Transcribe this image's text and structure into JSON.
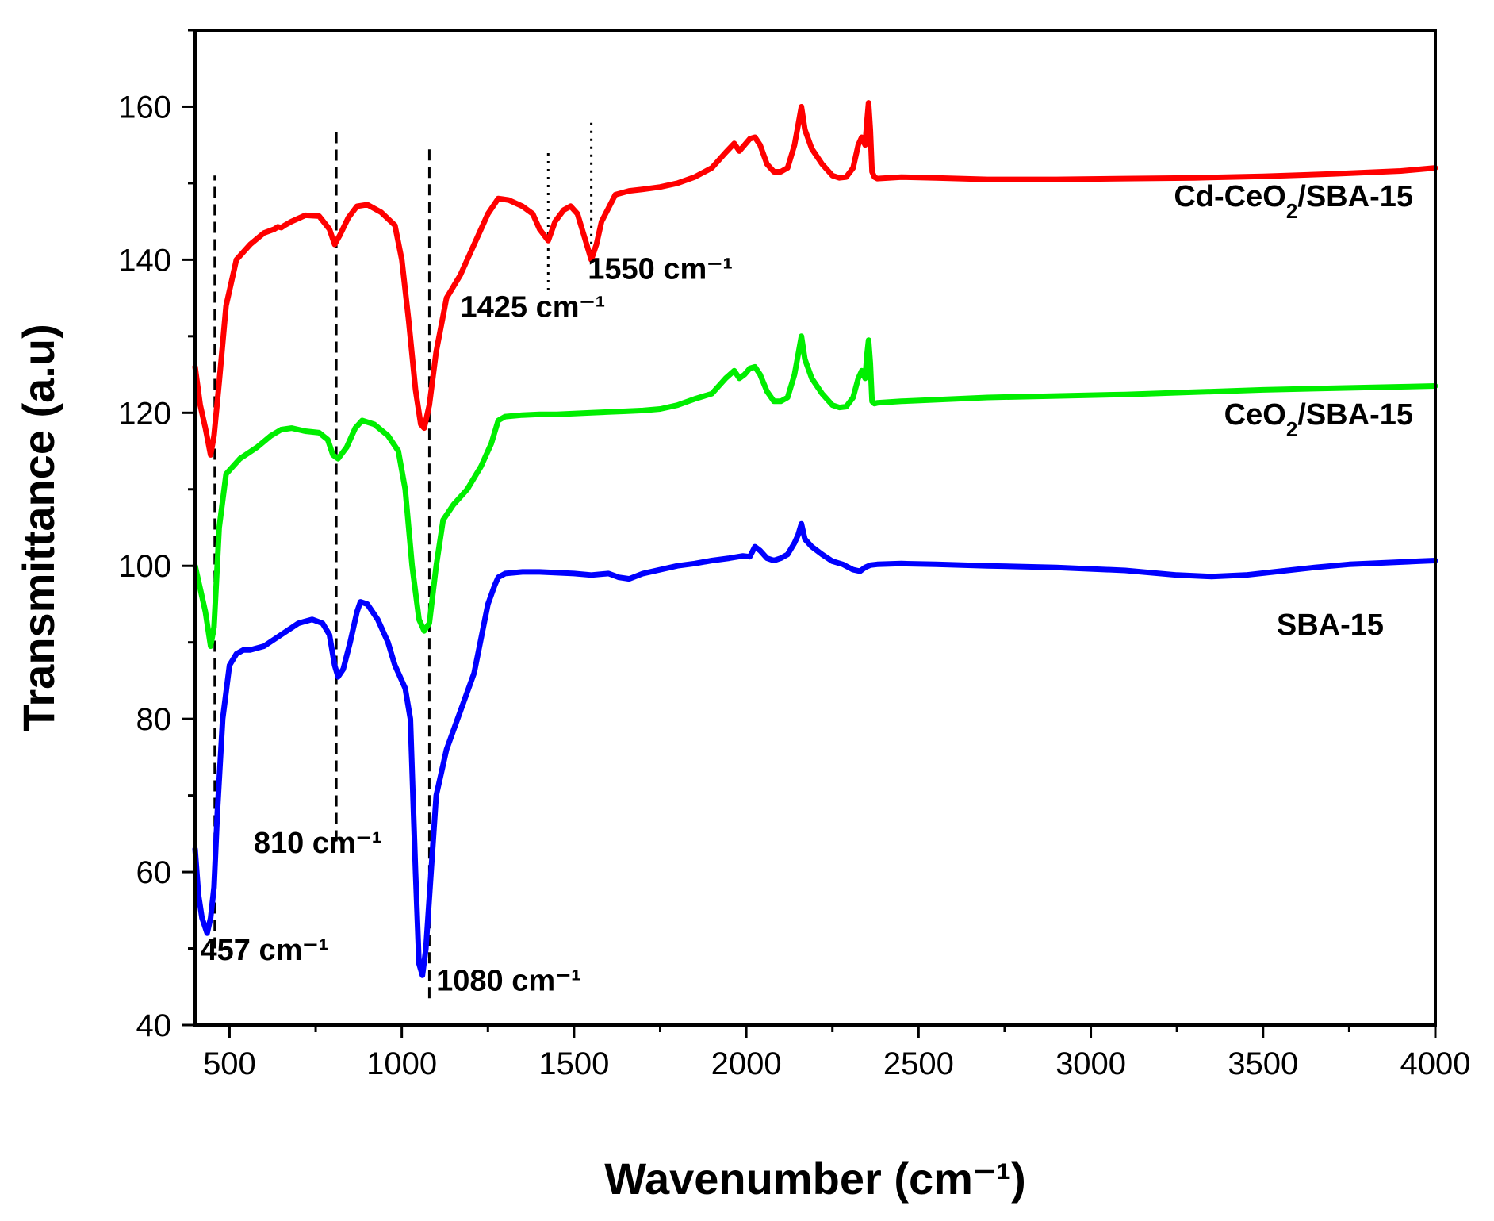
{
  "chart_data": {
    "type": "line",
    "title": "",
    "xlabel": "Wavenumber (cm⁻¹)",
    "ylabel": "Transmittance (a.u)",
    "xlim": [
      400,
      4000
    ],
    "ylim": [
      40,
      170
    ],
    "x_ticks": [
      500,
      1000,
      1500,
      2000,
      2500,
      3000,
      3500,
      4000
    ],
    "y_ticks": [
      40,
      60,
      80,
      100,
      120,
      140,
      160
    ],
    "grid": false,
    "legend": "inline labels at right",
    "series": [
      {
        "name": "Cd-CeO2/SBA-15",
        "label_parts": [
          "Cd-CeO",
          "2",
          "/SBA-15"
        ],
        "color": "#ff0000",
        "x": [
          400,
          415,
          430,
          445,
          455,
          470,
          490,
          520,
          560,
          600,
          630,
          640,
          650,
          660,
          680,
          720,
          760,
          790,
          805,
          820,
          845,
          870,
          900,
          940,
          980,
          1000,
          1020,
          1040,
          1055,
          1065,
          1080,
          1100,
          1130,
          1170,
          1210,
          1250,
          1280,
          1310,
          1350,
          1380,
          1400,
          1425,
          1445,
          1470,
          1490,
          1510,
          1530,
          1550,
          1565,
          1580,
          1620,
          1660,
          1700,
          1750,
          1800,
          1850,
          1900,
          1940,
          1965,
          1980,
          1995,
          2010,
          2025,
          2040,
          2060,
          2080,
          2100,
          2120,
          2140,
          2150,
          2160,
          2170,
          2190,
          2220,
          2250,
          2270,
          2290,
          2310,
          2325,
          2335,
          2345,
          2350,
          2355,
          2360,
          2365,
          2372,
          2380,
          2450,
          2550,
          2700,
          2900,
          3100,
          3300,
          3500,
          3700,
          3900,
          4000
        ],
        "y": [
          126,
          121,
          118,
          114.5,
          117,
          124,
          134,
          140,
          142,
          143.5,
          144,
          144.3,
          144.2,
          144.5,
          145,
          145.8,
          145.7,
          144,
          142,
          143.2,
          145.5,
          147,
          147.2,
          146.2,
          144.5,
          140,
          132,
          123,
          118.5,
          118,
          121,
          128,
          135,
          138,
          142,
          146,
          148,
          147.8,
          147,
          146,
          144,
          142.5,
          145,
          146.5,
          147,
          146,
          143,
          140,
          142,
          145,
          148.5,
          149,
          149.2,
          149.5,
          150,
          150.8,
          152,
          154,
          155.2,
          154.2,
          155,
          155.8,
          156,
          155,
          152.5,
          151.5,
          151.5,
          152,
          155,
          157.5,
          160,
          157,
          154.5,
          152.5,
          151,
          150.7,
          150.8,
          152,
          155,
          156,
          155,
          158,
          160.5,
          157,
          151.5,
          150.8,
          150.6,
          150.8,
          150.7,
          150.5,
          150.5,
          150.6,
          150.7,
          150.9,
          151.2,
          151.6,
          152
        ]
      },
      {
        "name": "CeO2/SBA-15",
        "label_parts": [
          "CeO",
          "2",
          "/SBA-15"
        ],
        "color": "#00ee00",
        "x": [
          400,
          415,
          430,
          445,
          455,
          470,
          490,
          530,
          580,
          620,
          650,
          680,
          720,
          760,
          785,
          800,
          815,
          840,
          865,
          885,
          920,
          960,
          990,
          1010,
          1030,
          1050,
          1065,
          1080,
          1100,
          1120,
          1150,
          1190,
          1230,
          1260,
          1280,
          1300,
          1350,
          1400,
          1450,
          1500,
          1550,
          1600,
          1650,
          1700,
          1750,
          1800,
          1850,
          1900,
          1940,
          1965,
          1980,
          1995,
          2010,
          2025,
          2040,
          2060,
          2080,
          2100,
          2120,
          2140,
          2150,
          2160,
          2170,
          2190,
          2220,
          2250,
          2270,
          2290,
          2310,
          2325,
          2335,
          2345,
          2350,
          2355,
          2360,
          2365,
          2372,
          2380,
          2450,
          2550,
          2700,
          2900,
          3100,
          3300,
          3500,
          3700,
          3900,
          4000
        ],
        "y": [
          100,
          97,
          94,
          89.5,
          92,
          105,
          112,
          114,
          115.5,
          117,
          117.8,
          118,
          117.6,
          117.4,
          116.5,
          114.5,
          114,
          115.5,
          118,
          119,
          118.5,
          117,
          115,
          110,
          100,
          93,
          91.5,
          92.5,
          100,
          106,
          108,
          110,
          113,
          116,
          119,
          119.5,
          119.7,
          119.8,
          119.8,
          119.9,
          120,
          120.1,
          120.2,
          120.3,
          120.5,
          121,
          121.8,
          122.5,
          124.5,
          125.5,
          124.5,
          125,
          125.8,
          126,
          125,
          122.8,
          121.5,
          121.5,
          122,
          125,
          127.5,
          130,
          127,
          124.5,
          122.5,
          121,
          120.7,
          120.8,
          122,
          124.5,
          125.5,
          124.5,
          127.5,
          129.5,
          126.5,
          121.5,
          121.2,
          121.3,
          121.5,
          121.7,
          122,
          122.2,
          122.4,
          122.7,
          123,
          123.2,
          123.4,
          123.5
        ]
      },
      {
        "name": "SBA-15",
        "label_parts": [
          "SBA-15"
        ],
        "color": "#0000ff",
        "x": [
          400,
          410,
          420,
          435,
          445,
          455,
          465,
          480,
          500,
          520,
          540,
          560,
          600,
          650,
          700,
          740,
          770,
          790,
          805,
          815,
          830,
          850,
          870,
          880,
          900,
          930,
          960,
          980,
          995,
          1010,
          1025,
          1040,
          1050,
          1060,
          1070,
          1085,
          1100,
          1130,
          1170,
          1210,
          1250,
          1270,
          1280,
          1300,
          1350,
          1400,
          1450,
          1500,
          1550,
          1600,
          1630,
          1660,
          1700,
          1750,
          1800,
          1850,
          1900,
          1950,
          1990,
          2010,
          2025,
          2040,
          2060,
          2080,
          2100,
          2120,
          2140,
          2150,
          2160,
          2170,
          2190,
          2220,
          2250,
          2280,
          2310,
          2330,
          2345,
          2360,
          2380,
          2450,
          2550,
          2700,
          2900,
          3100,
          3250,
          3350,
          3450,
          3550,
          3650,
          3750,
          3850,
          3950,
          4000
        ],
        "y": [
          63,
          57,
          54,
          52,
          54,
          58,
          68,
          80,
          87,
          88.5,
          89,
          89,
          89.5,
          91,
          92.5,
          93,
          92.5,
          91,
          87,
          85.5,
          86.5,
          90,
          94,
          95.3,
          95,
          93,
          90,
          87,
          85.5,
          84,
          80,
          60,
          48,
          46.5,
          50,
          60,
          70,
          76,
          81,
          86,
          95,
          97.5,
          98.5,
          99,
          99.2,
          99.2,
          99.1,
          99,
          98.8,
          99,
          98.5,
          98.3,
          99,
          99.5,
          100,
          100.3,
          100.7,
          101,
          101.3,
          101.2,
          102.5,
          102,
          101,
          100.7,
          101,
          101.5,
          103,
          104,
          105.5,
          103.5,
          102.5,
          101.5,
          100.6,
          100.2,
          99.5,
          99.3,
          99.8,
          100.1,
          100.2,
          100.3,
          100.2,
          100,
          99.8,
          99.4,
          98.8,
          98.6,
          98.8,
          99.3,
          99.8,
          100.2,
          100.4,
          100.6,
          100.7
        ]
      }
    ],
    "annotations": [
      {
        "text": "457 cm⁻¹",
        "x": 457,
        "line_style": "dashed",
        "line_from": 50,
        "line_to": 151,
        "label_x": 415,
        "label_y": 48.5
      },
      {
        "text": "810 cm⁻¹",
        "x": 810,
        "line_style": "dashed",
        "line_from": 64,
        "line_to": 157.5,
        "label_x": 570,
        "label_y": 62.5
      },
      {
        "text": "1080 cm⁻¹",
        "x": 1080,
        "line_style": "dashed",
        "line_from": 43.5,
        "line_to": 154.5,
        "label_x": 1100,
        "label_y": 44.5
      },
      {
        "text": "1425 cm⁻¹",
        "x": 1425,
        "line_style": "dotted",
        "line_from": 136,
        "line_to": 154.5,
        "label_x": 1170,
        "label_y": 132.5
      },
      {
        "text": "1550 cm⁻¹",
        "x": 1550,
        "line_style": "dotted",
        "line_from": 141,
        "line_to": 158.5,
        "label_x": 1540,
        "label_y": 137.5
      }
    ]
  }
}
